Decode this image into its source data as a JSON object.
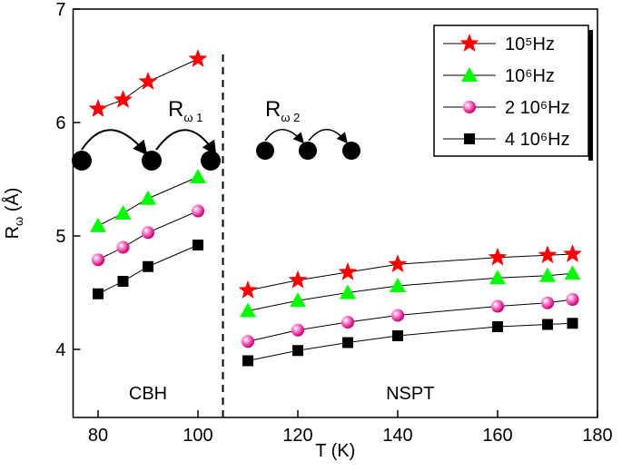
{
  "chart_data": {
    "type": "line",
    "x_label": "T (K)",
    "y_label": {
      "main": "R",
      "sub": "ω",
      "rest": " (Å)"
    },
    "x": [
      80,
      85,
      90,
      100,
      null,
      110,
      120,
      130,
      140,
      160,
      170,
      175
    ],
    "series": [
      {
        "name": "10⁵Hz",
        "color": "#ff0000",
        "marker": "star",
        "values": [
          6.12,
          6.2,
          6.36,
          6.56,
          null,
          4.52,
          4.61,
          4.68,
          4.75,
          4.81,
          4.83,
          4.84
        ]
      },
      {
        "name": "10⁶Hz",
        "color": "#00ff00",
        "marker": "triangle",
        "values": [
          5.09,
          5.2,
          5.33,
          5.52,
          null,
          4.34,
          4.43,
          4.5,
          4.56,
          4.63,
          4.65,
          4.67
        ]
      },
      {
        "name": "2 10⁶Hz",
        "color": "#ff1493",
        "marker": "sphere",
        "values": [
          4.79,
          4.9,
          5.03,
          5.22,
          null,
          4.07,
          4.17,
          4.24,
          4.3,
          4.38,
          4.41,
          4.44
        ]
      },
      {
        "name": "4 10⁶Hz",
        "color": "#000000",
        "marker": "square",
        "values": [
          4.49,
          4.6,
          4.73,
          4.92,
          null,
          3.9,
          3.99,
          4.06,
          4.12,
          4.2,
          4.22,
          4.23
        ]
      }
    ],
    "xlim": [
      75,
      180
    ],
    "xticks": [
      80,
      100,
      120,
      140,
      160,
      180
    ],
    "ylim": [
      3.4,
      7
    ],
    "yticks": [
      4,
      5,
      6,
      7
    ],
    "boundary": 105,
    "regions": [
      "CBH",
      "NSPT"
    ],
    "hop_labels": [
      {
        "main": "R",
        "sub": "ω 1"
      },
      {
        "main": "R",
        "sub": "ω 2"
      }
    ],
    "legend": "upper right"
  }
}
